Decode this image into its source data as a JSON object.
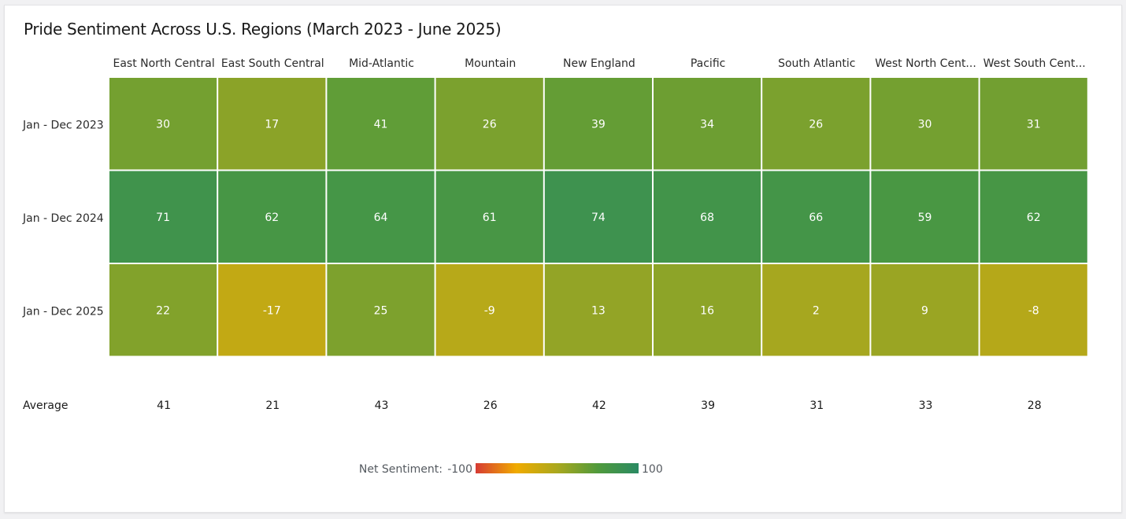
{
  "title": "Pride Sentiment Across U.S. Regions (March 2023 - June 2025)",
  "chart_data": {
    "type": "heatmap",
    "title": "Pride Sentiment Across U.S. Regions (March 2023 - June 2025)",
    "columns": [
      "East North Central",
      "East South Central",
      "Mid-Atlantic",
      "Mountain",
      "New England",
      "Pacific",
      "South Atlantic",
      "West North Cent...",
      "West South Cent..."
    ],
    "rows": [
      "Jan - Dec 2023",
      "Jan - Dec 2024",
      "Jan - Dec 2025"
    ],
    "values": [
      [
        30,
        17,
        41,
        26,
        39,
        34,
        26,
        30,
        31
      ],
      [
        71,
        62,
        64,
        61,
        74,
        68,
        66,
        59,
        62
      ],
      [
        22,
        -17,
        25,
        -9,
        13,
        16,
        2,
        9,
        -8
      ]
    ],
    "average_label": "Average",
    "averages": [
      41,
      21,
      43,
      26,
      42,
      39,
      31,
      33,
      28
    ],
    "legend": {
      "label": "Net Sentiment:",
      "min_label": "-100",
      "max_label": "100",
      "min": -100,
      "max": 100,
      "colors": [
        "#d63b34",
        "#f0ab00",
        "#aaa81e",
        "#509a3c",
        "#2a8a63"
      ]
    }
  }
}
